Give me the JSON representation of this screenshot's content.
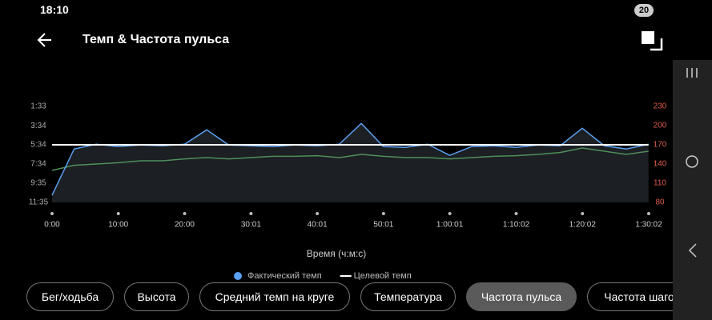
{
  "status_bar": {
    "time": "18:10",
    "battery": "20"
  },
  "header": {
    "title": "Темп & Частота пульса"
  },
  "chart_data": {
    "type": "line",
    "x_label": "Время (ч:м:с)",
    "x": [
      0,
      200,
      400,
      600,
      800,
      1000,
      1200,
      1400,
      1600,
      1800,
      2000,
      2200,
      2400,
      2600,
      2800,
      3000,
      3200,
      3400,
      3600,
      3800,
      4000,
      4200,
      4400,
      4600,
      4800,
      5000,
      5200,
      5400
    ],
    "series": [
      {
        "name": "Фактический темп",
        "color": "#5aa0f0",
        "values": [
          650,
          360,
          330,
          345,
          335,
          340,
          330,
          240,
          335,
          340,
          345,
          335,
          340,
          330,
          200,
          345,
          350,
          330,
          400,
          345,
          340,
          350,
          335,
          340,
          230,
          340,
          360,
          330
        ]
      },
      {
        "name": "Целевой темп",
        "color": "#ffffff",
        "values": [
          334,
          334,
          334,
          334,
          334,
          334,
          334,
          334,
          334,
          334,
          334,
          334,
          334,
          334,
          334,
          334,
          334,
          334,
          334,
          334,
          334,
          334,
          334,
          334,
          334,
          334,
          334,
          334
        ]
      },
      {
        "color": "#4f8f5a",
        "axis": "y2",
        "values": [
          130,
          138,
          140,
          142,
          145,
          145,
          148,
          150,
          148,
          150,
          152,
          152,
          153,
          150,
          155,
          152,
          150,
          150,
          148,
          150,
          152,
          153,
          155,
          158,
          165,
          160,
          155,
          160
        ]
      }
    ],
    "xlim": [
      0,
      5402
    ],
    "xticks": [
      {
        "value": 0,
        "label": "0:00"
      },
      {
        "value": 600,
        "label": "10:00"
      },
      {
        "value": 1200,
        "label": "20:00"
      },
      {
        "value": 1801,
        "label": "30:01"
      },
      {
        "value": 2401,
        "label": "40:01"
      },
      {
        "value": 3001,
        "label": "50:01"
      },
      {
        "value": 3601,
        "label": "1:00:01"
      },
      {
        "value": 4202,
        "label": "1:10:02"
      },
      {
        "value": 4802,
        "label": "1:20:02"
      },
      {
        "value": 5402,
        "label": "1:30:02"
      }
    ],
    "ylim": [
      695,
      93
    ],
    "yticks": [
      {
        "value": 93,
        "label": "1:33"
      },
      {
        "value": 214,
        "label": "3:34"
      },
      {
        "value": 334,
        "label": "5:34"
      },
      {
        "value": 454,
        "label": "7:34"
      },
      {
        "value": 575,
        "label": "9:35"
      },
      {
        "value": 695,
        "label": "11:35"
      }
    ],
    "y2lim": [
      80,
      230
    ],
    "y2ticks": [
      230,
      200,
      170,
      140,
      110,
      80
    ],
    "y2_color": "#e05a4a"
  },
  "tabs": [
    "Бег/ходьба",
    "Высота",
    "Средний темп на круге",
    "Температура",
    "Частота пульса",
    "Частота шаго"
  ],
  "selected_tab": 4
}
